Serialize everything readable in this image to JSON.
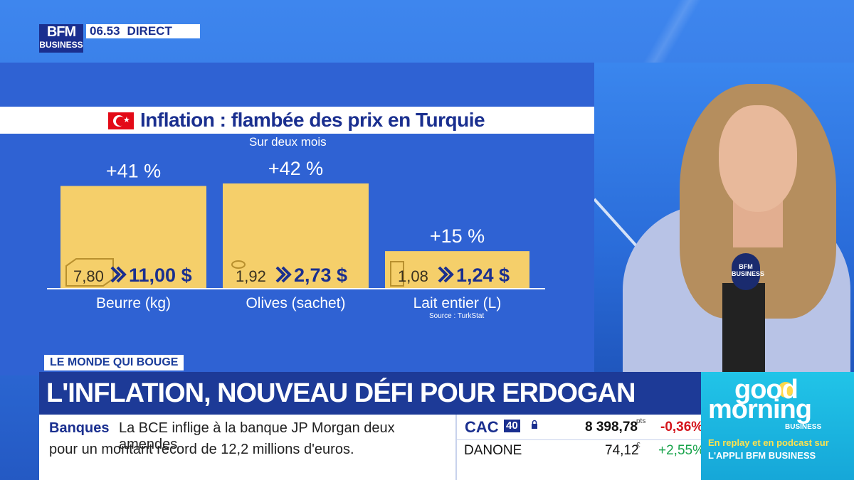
{
  "channel": {
    "logo_line1": "BFM",
    "logo_line2": "BUSINESS",
    "time": "06.53",
    "live_label": "DIRECT"
  },
  "chart_data": {
    "type": "bar",
    "title": "Inflation : flambée des prix en Turquie",
    "subtitle": "Sur deux mois",
    "categories": [
      "Beurre (kg)",
      "Olives (sachet)",
      "Lait entier (L)"
    ],
    "values": [
      41,
      42,
      15
    ],
    "value_labels": [
      "+41 %",
      "+42 %",
      "+15 %"
    ],
    "price_before": [
      "7,80",
      "1,92",
      "1,08"
    ],
    "price_after": [
      "11,00 $",
      "2,73 $",
      "1,24 $"
    ],
    "icons": [
      "butter-icon",
      "olive-icon",
      "milk-icon"
    ],
    "ylim": [
      0,
      42
    ],
    "bar_color": "#f5cf6a",
    "source": "Source : TurkStat"
  },
  "lower_third": {
    "section_tag": "LE MONDE QUI BOUGE",
    "headline": "L'INFLATION, NOUVEAU DÉFI POUR ERDOGAN",
    "news_category": "Banques",
    "news_line1": "La BCE inflige à la banque JP Morgan deux amendes",
    "news_line2": "pour un montant record de 12,2 millions d'euros."
  },
  "market": {
    "index_label": "CAC",
    "index_badge": "40",
    "index_value": "8 398,78",
    "index_unit": "pts",
    "index_change": "-0,36%",
    "stock_name": "DANONE",
    "stock_value": "74,12",
    "stock_unit": "€",
    "stock_change": "+2,55%"
  },
  "promo": {
    "line_good": "good",
    "line_morning": "morning",
    "line_business": "BUSINESS",
    "line_replay": "En replay et en podcast sur",
    "line_app": "L'APPLI BFM BUSINESS"
  },
  "presenter": {
    "mic_label": "BFM BUSINESS"
  }
}
